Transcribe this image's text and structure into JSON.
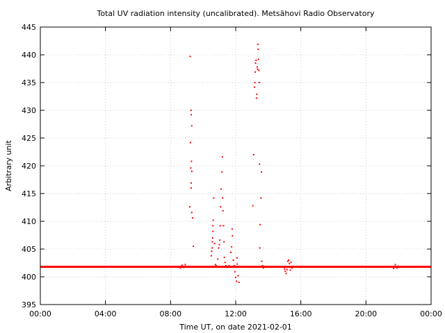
{
  "chart_data": {
    "type": "scatter",
    "title": "Total UV radiation intensity (uncalibrated). Metsähovi Radio Observatory",
    "xlabel": "Time UT, on date 2021-02-01",
    "ylabel": "Arbitrary unit",
    "xlim": [
      0,
      24
    ],
    "ylim": [
      395,
      445
    ],
    "xticks": [
      0,
      4,
      8,
      12,
      16,
      20,
      24
    ],
    "xtick_labels": [
      "00:00",
      "04:00",
      "08:00",
      "12:00",
      "16:00",
      "20:00",
      "00:00"
    ],
    "yticks": [
      395,
      400,
      405,
      410,
      415,
      420,
      425,
      430,
      435,
      440,
      445
    ],
    "grid": true,
    "baseline": 401.8,
    "point_color": "#ff0000",
    "points": [
      [
        8.6,
        401.6
      ],
      [
        8.7,
        402.1
      ],
      [
        8.8,
        401.7
      ],
      [
        8.9,
        402.2
      ],
      [
        9.2,
        439.7
      ],
      [
        9.25,
        430.0
      ],
      [
        9.27,
        429.2
      ],
      [
        9.3,
        427.2
      ],
      [
        9.22,
        424.2
      ],
      [
        9.28,
        420.8
      ],
      [
        9.24,
        419.6
      ],
      [
        9.3,
        419.0
      ],
      [
        9.27,
        416.9
      ],
      [
        9.26,
        416.0
      ],
      [
        9.18,
        412.6
      ],
      [
        9.3,
        411.6
      ],
      [
        9.35,
        410.6
      ],
      [
        9.4,
        405.5
      ],
      [
        10.5,
        403.8
      ],
      [
        10.52,
        404.6
      ],
      [
        10.55,
        405.2
      ],
      [
        10.56,
        406.3
      ],
      [
        10.58,
        407.0
      ],
      [
        10.6,
        408.2
      ],
      [
        10.6,
        409.2
      ],
      [
        10.62,
        410.2
      ],
      [
        10.65,
        414.2
      ],
      [
        10.7,
        406.0
      ],
      [
        10.75,
        402.2
      ],
      [
        10.8,
        402.0
      ],
      [
        10.9,
        403.2
      ],
      [
        10.95,
        405.2
      ],
      [
        11.0,
        405.8
      ],
      [
        11.02,
        406.6
      ],
      [
        11.05,
        409.2
      ],
      [
        11.07,
        412.6
      ],
      [
        11.1,
        415.8
      ],
      [
        11.15,
        418.9
      ],
      [
        11.18,
        421.6
      ],
      [
        11.2,
        414.2
      ],
      [
        11.22,
        411.9
      ],
      [
        11.25,
        409.2
      ],
      [
        11.28,
        406.3
      ],
      [
        11.3,
        403.5
      ],
      [
        11.35,
        402.6
      ],
      [
        11.4,
        402.0
      ],
      [
        11.5,
        401.7
      ],
      [
        11.6,
        402.0
      ],
      [
        11.7,
        404.4
      ],
      [
        11.75,
        405.4
      ],
      [
        11.78,
        408.6
      ],
      [
        11.8,
        407.4
      ],
      [
        11.85,
        403.0
      ],
      [
        11.9,
        402.0
      ],
      [
        11.95,
        400.9
      ],
      [
        12.0,
        399.9
      ],
      [
        12.05,
        399.2
      ],
      [
        12.08,
        403.4
      ],
      [
        12.1,
        402.3
      ],
      [
        12.15,
        400.2
      ],
      [
        12.2,
        399.0
      ],
      [
        12.25,
        401.8
      ],
      [
        13.05,
        412.8
      ],
      [
        13.1,
        422.0
      ],
      [
        13.15,
        434.2
      ],
      [
        13.18,
        435.0
      ],
      [
        13.2,
        436.9
      ],
      [
        13.22,
        438.5
      ],
      [
        13.25,
        439.0
      ],
      [
        13.28,
        432.2
      ],
      [
        13.3,
        432.9
      ],
      [
        13.32,
        437.8
      ],
      [
        13.34,
        437.4
      ],
      [
        13.36,
        441.9
      ],
      [
        13.38,
        441.0
      ],
      [
        13.4,
        439.2
      ],
      [
        13.42,
        437.2
      ],
      [
        13.44,
        435.0
      ],
      [
        13.46,
        420.3
      ],
      [
        13.48,
        405.2
      ],
      [
        13.5,
        409.4
      ],
      [
        13.55,
        414.2
      ],
      [
        13.58,
        418.9
      ],
      [
        13.6,
        402.8
      ],
      [
        13.65,
        402.0
      ],
      [
        13.7,
        401.6
      ],
      [
        15.0,
        401.4
      ],
      [
        15.05,
        401.0
      ],
      [
        15.1,
        400.6
      ],
      [
        15.15,
        401.3
      ],
      [
        15.2,
        402.8
      ],
      [
        15.25,
        403.0
      ],
      [
        15.3,
        402.4
      ],
      [
        15.35,
        401.2
      ],
      [
        15.4,
        402.6
      ],
      [
        15.45,
        401.6
      ],
      [
        21.7,
        401.5
      ],
      [
        21.8,
        402.2
      ],
      [
        21.9,
        401.6
      ],
      [
        22.0,
        401.9
      ]
    ]
  }
}
